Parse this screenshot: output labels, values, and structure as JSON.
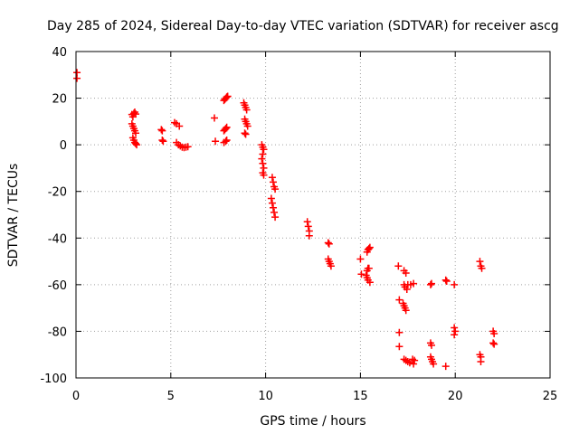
{
  "chart_data": {
    "type": "scatter",
    "title": "Day 285 of 2024, Sidereal Day-to-day VTEC variation (SDTVAR) for receiver ascg",
    "xlabel": "GPS time / hours",
    "ylabel": "SDTVAR / TECUs",
    "xlim": [
      0,
      25
    ],
    "ylim": [
      -100,
      40
    ],
    "xticks": [
      "0",
      "5",
      "10",
      "15",
      "20",
      "25"
    ],
    "yticks": [
      "-100",
      "-80",
      "-60",
      "-40",
      "-20",
      "0",
      "20",
      "40"
    ],
    "grid": true,
    "marker": "+",
    "color": "#ff0000",
    "series": [
      {
        "name": "SDTVAR",
        "points": [
          [
            0.05,
            31
          ],
          [
            0.05,
            28.5
          ],
          [
            2.95,
            13
          ],
          [
            3.0,
            12
          ],
          [
            3.05,
            13.5
          ],
          [
            3.1,
            14
          ],
          [
            3.15,
            13.2
          ],
          [
            2.95,
            9
          ],
          [
            3.0,
            8
          ],
          [
            3.05,
            7
          ],
          [
            3.1,
            6
          ],
          [
            3.15,
            5
          ],
          [
            3.0,
            3
          ],
          [
            3.05,
            2
          ],
          [
            3.1,
            1
          ],
          [
            3.15,
            0.5
          ],
          [
            3.2,
            0
          ],
          [
            4.5,
            6.5
          ],
          [
            4.55,
            6
          ],
          [
            4.55,
            2
          ],
          [
            4.6,
            1.5
          ],
          [
            5.2,
            9.5
          ],
          [
            5.3,
            9
          ],
          [
            5.45,
            8
          ],
          [
            5.3,
            1
          ],
          [
            5.4,
            0
          ],
          [
            5.5,
            -0.5
          ],
          [
            5.6,
            -1
          ],
          [
            5.7,
            -1.2
          ],
          [
            5.8,
            -1
          ],
          [
            5.9,
            -0.8
          ],
          [
            7.3,
            11.5
          ],
          [
            7.35,
            1.5
          ],
          [
            7.8,
            19
          ],
          [
            7.85,
            19.5
          ],
          [
            7.9,
            20
          ],
          [
            7.95,
            20.5
          ],
          [
            8.0,
            20.8
          ],
          [
            7.8,
            6
          ],
          [
            7.85,
            6.5
          ],
          [
            7.9,
            7
          ],
          [
            7.95,
            7.5
          ],
          [
            7.8,
            1
          ],
          [
            7.9,
            1.5
          ],
          [
            7.95,
            2
          ],
          [
            8.85,
            18
          ],
          [
            8.9,
            17
          ],
          [
            8.95,
            16
          ],
          [
            9.0,
            15
          ],
          [
            8.9,
            11
          ],
          [
            8.95,
            10
          ],
          [
            9.0,
            9
          ],
          [
            9.05,
            8
          ],
          [
            8.9,
            5
          ],
          [
            8.95,
            4.5
          ],
          [
            9.8,
            0
          ],
          [
            9.85,
            -1
          ],
          [
            9.9,
            -2
          ],
          [
            9.85,
            -4
          ],
          [
            9.8,
            -6
          ],
          [
            9.85,
            -8
          ],
          [
            9.9,
            -10
          ],
          [
            9.85,
            -12
          ],
          [
            9.9,
            -13
          ],
          [
            10.35,
            -14
          ],
          [
            10.4,
            -16
          ],
          [
            10.45,
            -18
          ],
          [
            10.5,
            -19
          ],
          [
            10.3,
            -23
          ],
          [
            10.35,
            -25
          ],
          [
            10.4,
            -27
          ],
          [
            10.45,
            -29
          ],
          [
            10.5,
            -31
          ],
          [
            12.2,
            -33
          ],
          [
            12.25,
            -35
          ],
          [
            12.3,
            -37
          ],
          [
            12.3,
            -39
          ],
          [
            13.3,
            -42
          ],
          [
            13.35,
            -42.5
          ],
          [
            13.3,
            -49
          ],
          [
            13.35,
            -50
          ],
          [
            13.4,
            -51
          ],
          [
            13.45,
            -52
          ],
          [
            15.0,
            -49
          ],
          [
            15.05,
            -55.5
          ],
          [
            15.35,
            -46
          ],
          [
            15.4,
            -45
          ],
          [
            15.45,
            -44.5
          ],
          [
            15.5,
            -44
          ],
          [
            15.35,
            -54
          ],
          [
            15.4,
            -53
          ],
          [
            15.45,
            -53
          ],
          [
            15.3,
            -56
          ],
          [
            15.35,
            -57
          ],
          [
            15.4,
            -58
          ],
          [
            15.5,
            -59
          ],
          [
            17.0,
            -52
          ],
          [
            17.05,
            -66.5
          ],
          [
            17.05,
            -80.5
          ],
          [
            17.05,
            -86.5
          ],
          [
            17.3,
            -54
          ],
          [
            17.4,
            -55
          ],
          [
            17.3,
            -60
          ],
          [
            17.35,
            -61
          ],
          [
            17.45,
            -62
          ],
          [
            17.5,
            -60
          ],
          [
            17.65,
            -60
          ],
          [
            17.8,
            -59.5
          ],
          [
            17.25,
            -68
          ],
          [
            17.3,
            -69
          ],
          [
            17.35,
            -70
          ],
          [
            17.4,
            -71
          ],
          [
            17.3,
            -92
          ],
          [
            17.4,
            -92.5
          ],
          [
            17.5,
            -93
          ],
          [
            17.6,
            -93.5
          ],
          [
            17.75,
            -92
          ],
          [
            17.85,
            -92.5
          ],
          [
            17.8,
            -94
          ],
          [
            18.7,
            -60
          ],
          [
            18.75,
            -59.5
          ],
          [
            18.7,
            -85
          ],
          [
            18.75,
            -86
          ],
          [
            18.7,
            -91
          ],
          [
            18.75,
            -92
          ],
          [
            18.8,
            -93
          ],
          [
            18.85,
            -94
          ],
          [
            19.5,
            -58
          ],
          [
            19.55,
            -58.5
          ],
          [
            19.5,
            -95
          ],
          [
            19.95,
            -60
          ],
          [
            19.95,
            -78.5
          ],
          [
            20.0,
            -80
          ],
          [
            19.95,
            -81.5
          ],
          [
            21.3,
            -50
          ],
          [
            21.35,
            -52
          ],
          [
            21.4,
            -53
          ],
          [
            21.3,
            -90
          ],
          [
            21.35,
            -91
          ],
          [
            21.35,
            -93
          ],
          [
            22.0,
            -80
          ],
          [
            22.05,
            -81
          ],
          [
            22.0,
            -85
          ],
          [
            22.05,
            -85.5
          ]
        ]
      }
    ]
  }
}
